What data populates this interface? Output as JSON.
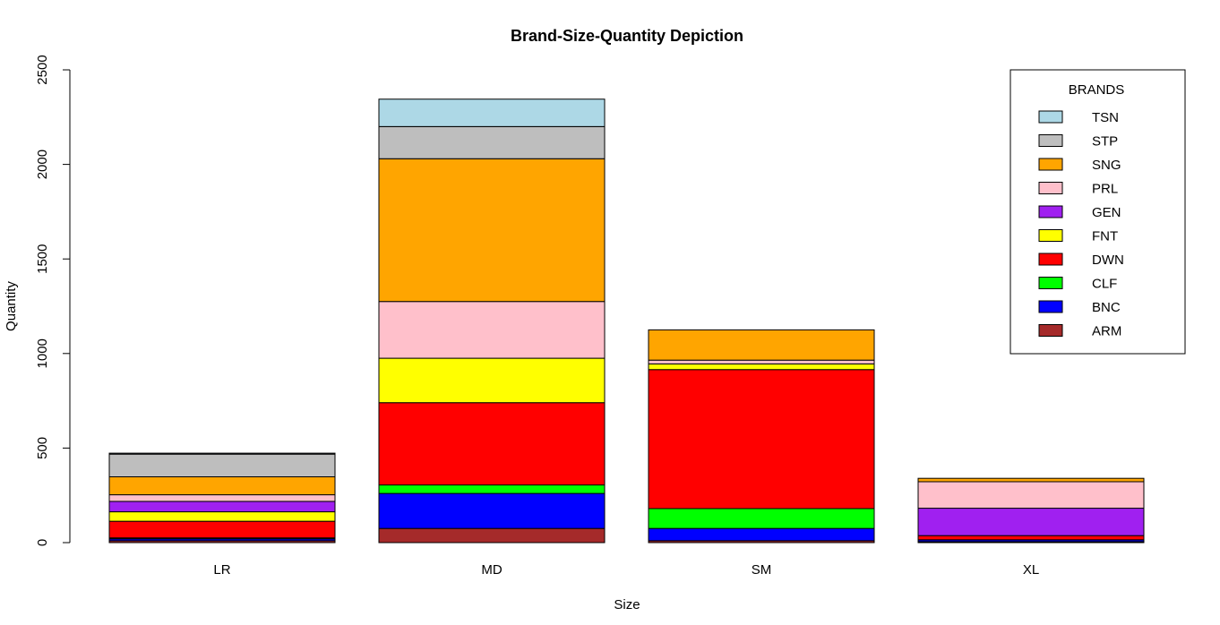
{
  "chart_data": {
    "type": "bar",
    "stacked": true,
    "title": "Brand-Size-Quantity Depiction",
    "xlabel": "Size",
    "ylabel": "Quantity",
    "ylim": [
      0,
      2500
    ],
    "yticks": [
      0,
      500,
      1000,
      1500,
      2000,
      2500
    ],
    "categories": [
      "LR",
      "MD",
      "SM",
      "XL"
    ],
    "legend_title": "BRANDS",
    "legend_position": "top-right",
    "grid": false,
    "series": [
      {
        "name": "ARM",
        "color": "#a52a2a",
        "values": [
          10,
          75,
          10,
          5
        ]
      },
      {
        "name": "BNC",
        "color": "#0000ff",
        "values": [
          10,
          185,
          65,
          10
        ]
      },
      {
        "name": "CLF",
        "color": "#00ff00",
        "values": [
          5,
          45,
          105,
          0
        ]
      },
      {
        "name": "DWN",
        "color": "#ff0000",
        "values": [
          88,
          435,
          735,
          22
        ]
      },
      {
        "name": "FNT",
        "color": "#ffff00",
        "values": [
          50,
          235,
          30,
          0
        ]
      },
      {
        "name": "GEN",
        "color": "#a020f0",
        "values": [
          55,
          0,
          0,
          145
        ]
      },
      {
        "name": "PRL",
        "color": "#ffc0cb",
        "values": [
          35,
          300,
          20,
          140
        ]
      },
      {
        "name": "SNG",
        "color": "#ffa500",
        "values": [
          95,
          755,
          160,
          18
        ]
      },
      {
        "name": "STP",
        "color": "#bebebe",
        "values": [
          120,
          170,
          0,
          0
        ]
      },
      {
        "name": "TSN",
        "color": "#add8e6",
        "values": [
          5,
          145,
          0,
          0
        ]
      }
    ]
  }
}
